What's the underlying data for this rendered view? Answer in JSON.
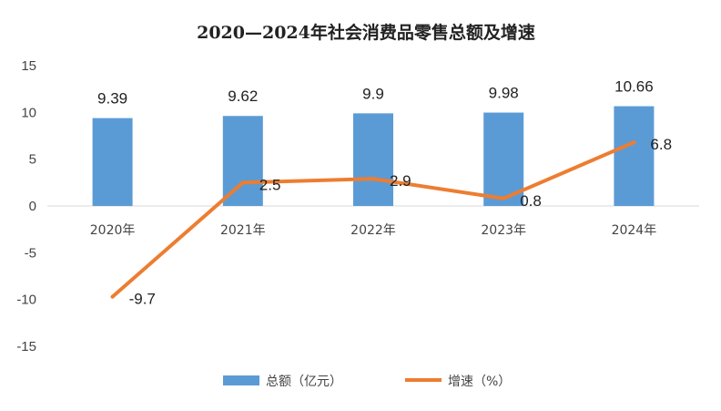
{
  "chart_data": {
    "type": "bar",
    "title": "2020—2024年社会消费品零售总额及增速",
    "categories": [
      "2020年",
      "2021年",
      "2022年",
      "2023年",
      "2024年"
    ],
    "series": [
      {
        "name": "总额（亿元）",
        "kind": "bar",
        "color": "#5B9BD5",
        "values": [
          9.39,
          9.62,
          9.9,
          9.98,
          10.66
        ],
        "labels": [
          "9.39",
          "9.62",
          "9.9",
          "9.98",
          "10.66"
        ]
      },
      {
        "name": "增速（%）",
        "kind": "line",
        "color": "#ED7D31",
        "values": [
          -9.7,
          2.5,
          2.9,
          0.8,
          6.8
        ],
        "labels": [
          "-9.7",
          "2.5",
          "2.9",
          "0.8",
          "6.8"
        ]
      }
    ],
    "ylim": [
      -15,
      15
    ],
    "yticks": [
      "15",
      "10",
      "5",
      "0",
      "-5",
      "-10",
      "-15"
    ],
    "ytick_values": [
      15,
      10,
      5,
      0,
      -5,
      -10,
      -15
    ],
    "grid": false,
    "legend": "bottom",
    "xlabel": "",
    "ylabel": ""
  }
}
